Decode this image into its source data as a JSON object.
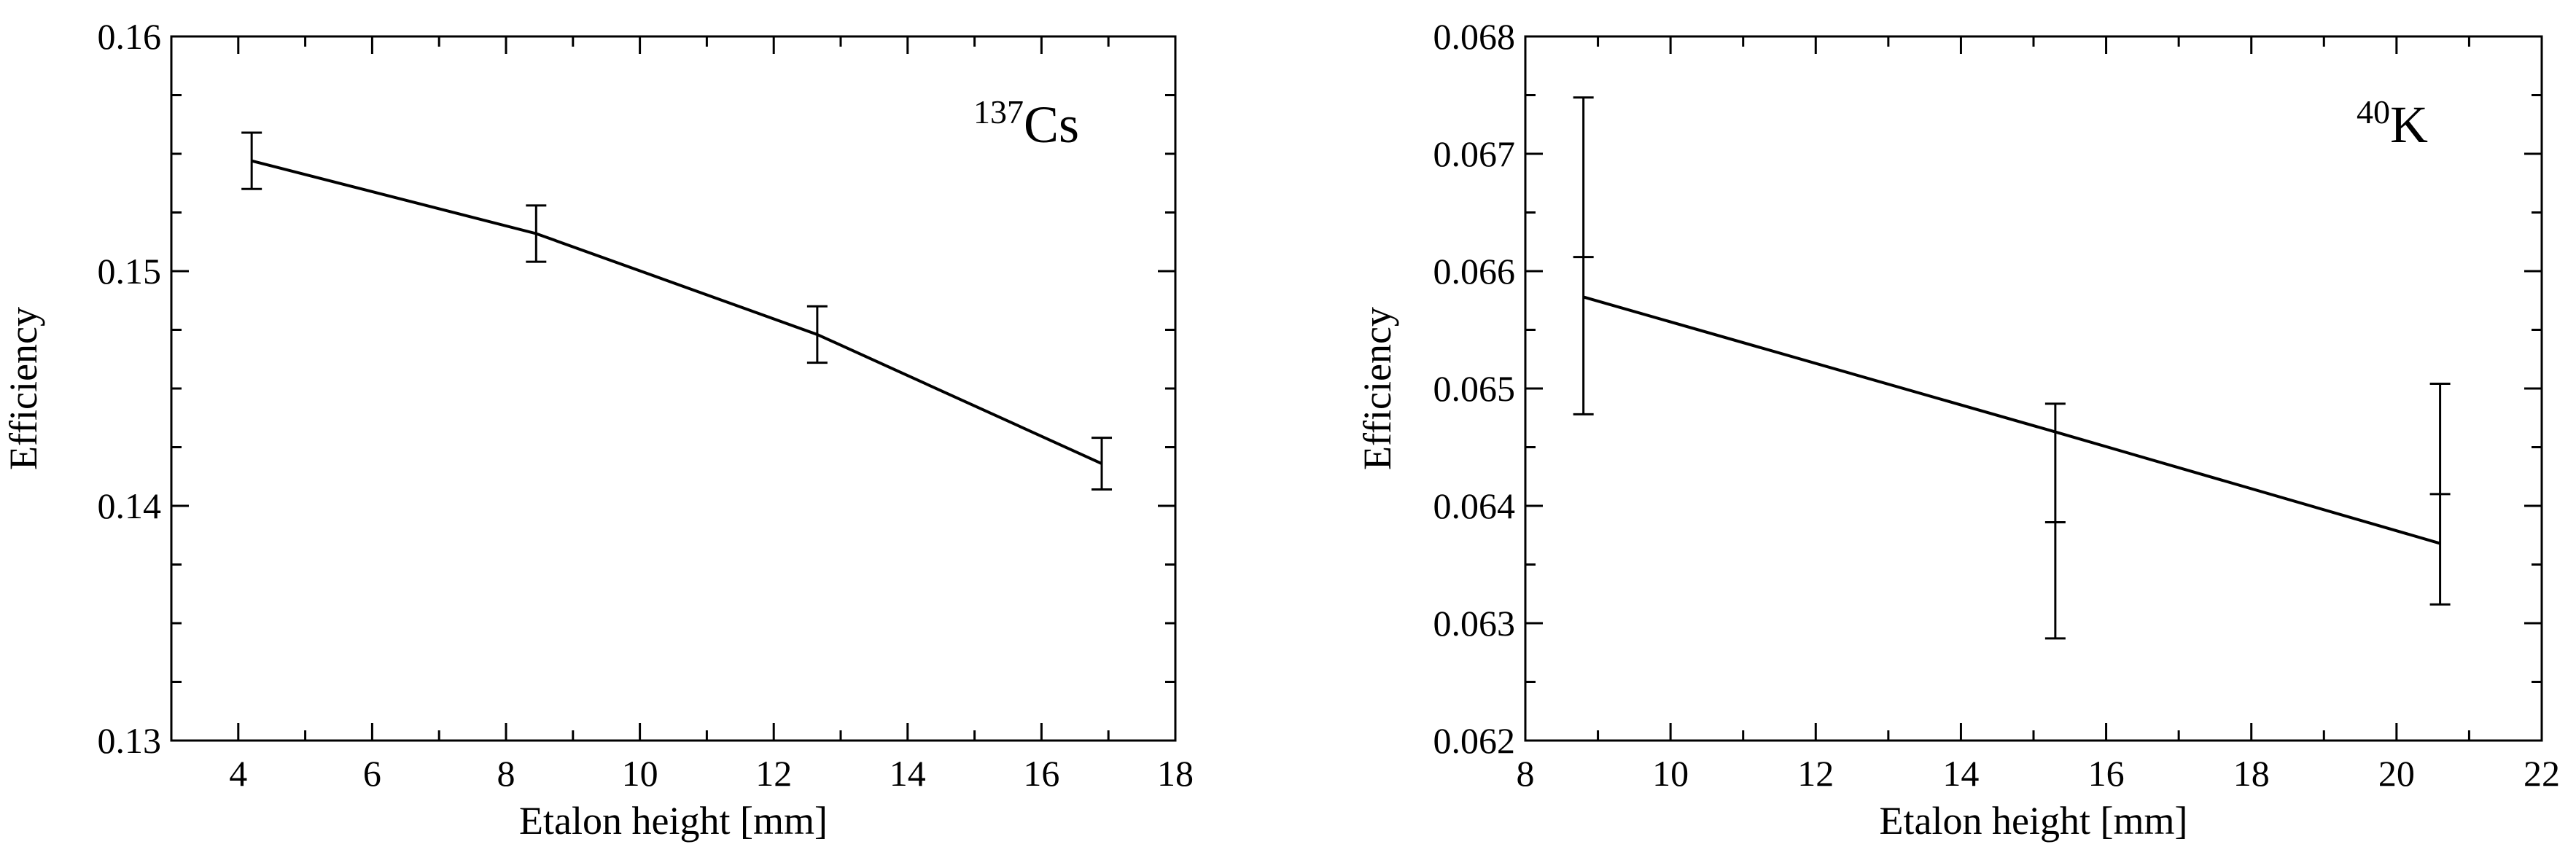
{
  "chart_data": [
    {
      "type": "line",
      "title": "",
      "annotation": {
        "mass_number": "137",
        "element": "Cs"
      },
      "xlabel": "Etalon height [mm]",
      "ylabel": "Efficiency",
      "xlim": [
        3,
        18
      ],
      "ylim": [
        0.13,
        0.16
      ],
      "xticks": [
        4,
        6,
        8,
        10,
        12,
        14,
        16,
        18
      ],
      "yticks": [
        0.13,
        0.14,
        0.15,
        0.16
      ],
      "xtick_labels": [
        "4",
        "6",
        "8",
        "10",
        "12",
        "14",
        "16",
        "18"
      ],
      "ytick_labels": [
        "0.13",
        "0.14",
        "0.15",
        "0.16"
      ],
      "grid": false,
      "series": [
        {
          "x": [
            4.2,
            8.45,
            12.65,
            16.9
          ],
          "y": [
            0.1547,
            0.1516,
            0.1473,
            0.1418
          ],
          "yerr": [
            0.0012,
            0.0012,
            0.0012,
            0.0011
          ]
        }
      ]
    },
    {
      "type": "line",
      "title": "",
      "annotation": {
        "mass_number": "40",
        "element": "K"
      },
      "xlabel": "Etalon height [mm]",
      "ylabel": "Efficiency",
      "xlim": [
        8,
        22
      ],
      "ylim": [
        0.062,
        0.068
      ],
      "xticks": [
        8,
        10,
        12,
        14,
        16,
        18,
        20,
        22
      ],
      "yticks": [
        0.062,
        0.063,
        0.064,
        0.065,
        0.066,
        0.067,
        0.068
      ],
      "xtick_labels": [
        "8",
        "10",
        "12",
        "14",
        "16",
        "18",
        "20",
        "22"
      ],
      "ytick_labels": [
        "0.062",
        "0.063",
        "0.064",
        "0.065",
        "0.066",
        "0.067",
        "0.068"
      ],
      "grid": false,
      "series": [
        {
          "x": [
            8.8,
            15.3,
            20.6
          ],
          "y": [
            0.06578,
            0.06463,
            0.06368
          ],
          "ylow": [
            0.06478,
            0.06287,
            0.06316
          ],
          "yhigh": [
            0.06748,
            0.06487,
            0.06504
          ],
          "extra_ticks": [
            0.06612,
            0.06386,
            0.0641
          ]
        }
      ]
    }
  ]
}
